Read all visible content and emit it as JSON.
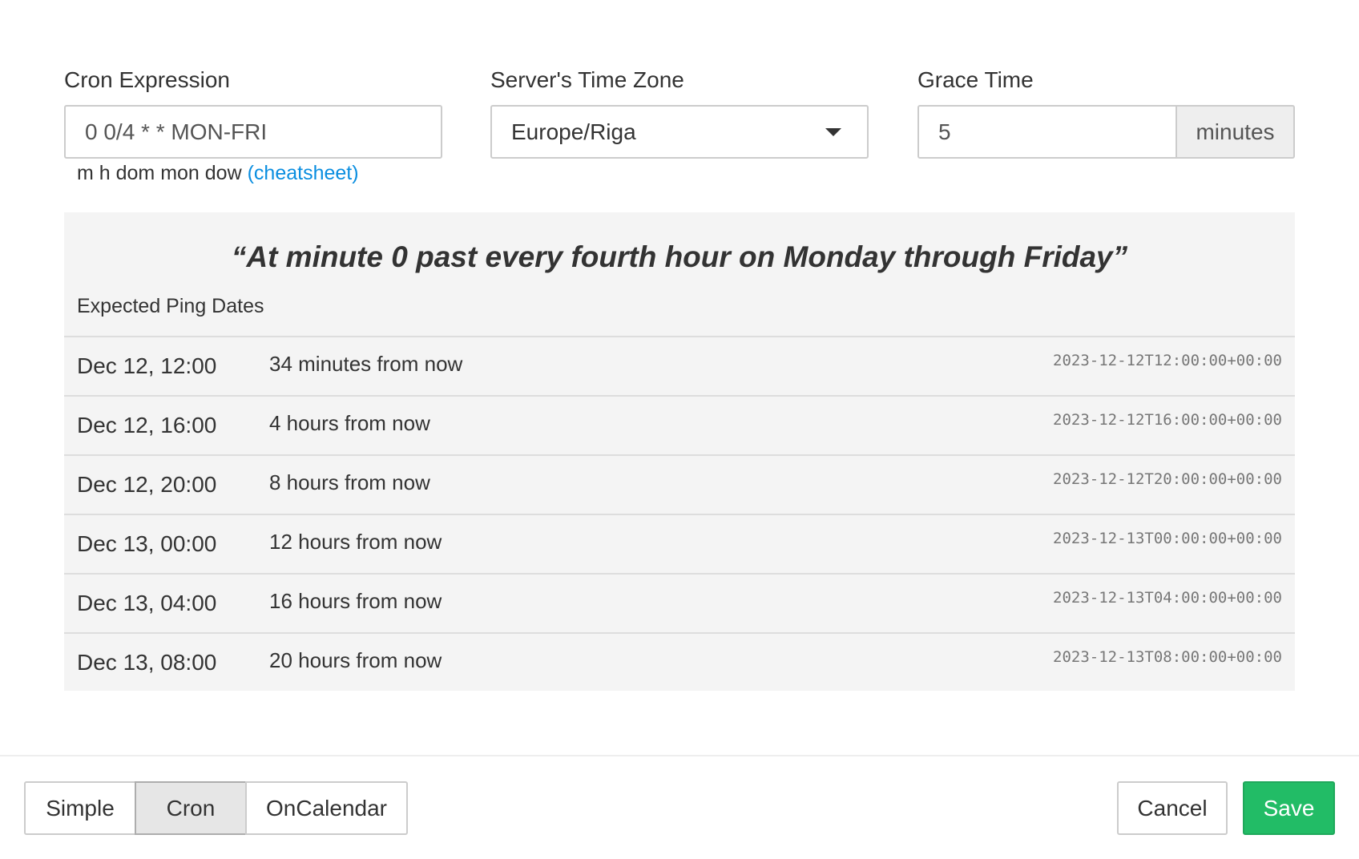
{
  "fields": {
    "cron_label": "Cron Expression",
    "cron_value": "0 0/4 * * MON-FRI",
    "hint": "m h dom mon dow",
    "cheatsheet": "(cheatsheet)",
    "tz_label": "Server's Time Zone",
    "tz_value": "Europe/Riga",
    "grace_label": "Grace Time",
    "grace_value": "5",
    "grace_unit": "minutes"
  },
  "description": "“At minute 0 past every fourth hour on Monday through Friday”",
  "expected_title": "Expected Ping Dates",
  "rows": [
    {
      "date": "Dec 12, 12:00",
      "rel": "34 minutes from now",
      "iso": "2023-12-12T12:00:00+00:00"
    },
    {
      "date": "Dec 12, 16:00",
      "rel": "4 hours from now",
      "iso": "2023-12-12T16:00:00+00:00"
    },
    {
      "date": "Dec 12, 20:00",
      "rel": "8 hours from now",
      "iso": "2023-12-12T20:00:00+00:00"
    },
    {
      "date": "Dec 13, 00:00",
      "rel": "12 hours from now",
      "iso": "2023-12-13T00:00:00+00:00"
    },
    {
      "date": "Dec 13, 04:00",
      "rel": "16 hours from now",
      "iso": "2023-12-13T04:00:00+00:00"
    },
    {
      "date": "Dec 13, 08:00",
      "rel": "20 hours from now",
      "iso": "2023-12-13T08:00:00+00:00"
    }
  ],
  "footer": {
    "tabs": [
      "Simple",
      "Cron",
      "OnCalendar"
    ],
    "active_tab": "Cron",
    "cancel": "Cancel",
    "save": "Save"
  },
  "colors": {
    "save": "#22bc66",
    "link": "#0a8ee0"
  }
}
